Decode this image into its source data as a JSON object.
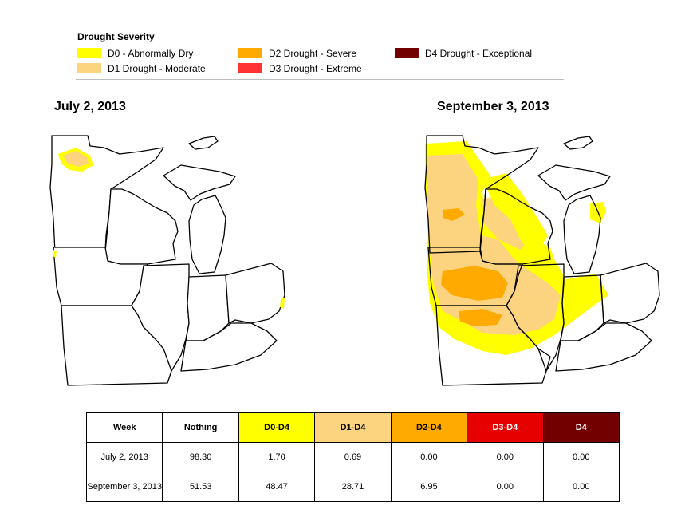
{
  "legend": {
    "title": "Drought Severity",
    "items": [
      {
        "label": "D0 - Abnormally Dry",
        "color": "#ffff00"
      },
      {
        "label": "D1 Drought - Moderate",
        "color": "#fcd37f"
      },
      {
        "label": "D2 Drought - Severe",
        "color": "#ffaa00"
      },
      {
        "label": "D3 Drought - Extreme",
        "color": "#ff3333"
      },
      {
        "label": "D4 Drought - Exceptional",
        "color": "#730000"
      }
    ]
  },
  "maps": [
    {
      "title": "July 2, 2013"
    },
    {
      "title": "September 3, 2013"
    }
  ],
  "table": {
    "headers": [
      {
        "label": "Week",
        "bg": "#ffffff",
        "fg": "#000000"
      },
      {
        "label": "Nothing",
        "bg": "#ffffff",
        "fg": "#000000"
      },
      {
        "label": "D0-D4",
        "bg": "#ffff00",
        "fg": "#000000"
      },
      {
        "label": "D1-D4",
        "bg": "#fcd37f",
        "fg": "#000000"
      },
      {
        "label": "D2-D4",
        "bg": "#ffaa00",
        "fg": "#000000"
      },
      {
        "label": "D3-D4",
        "bg": "#e60000",
        "fg": "#ffffff"
      },
      {
        "label": "D4",
        "bg": "#730000",
        "fg": "#ffffff"
      }
    ],
    "rows": [
      [
        "July 2, 2013",
        "98.30",
        "1.70",
        "0.69",
        "0.00",
        "0.00",
        "0.00"
      ],
      [
        "September 3, 2013",
        "51.53",
        "48.47",
        "28.71",
        "6.95",
        "0.00",
        "0.00"
      ]
    ]
  }
}
